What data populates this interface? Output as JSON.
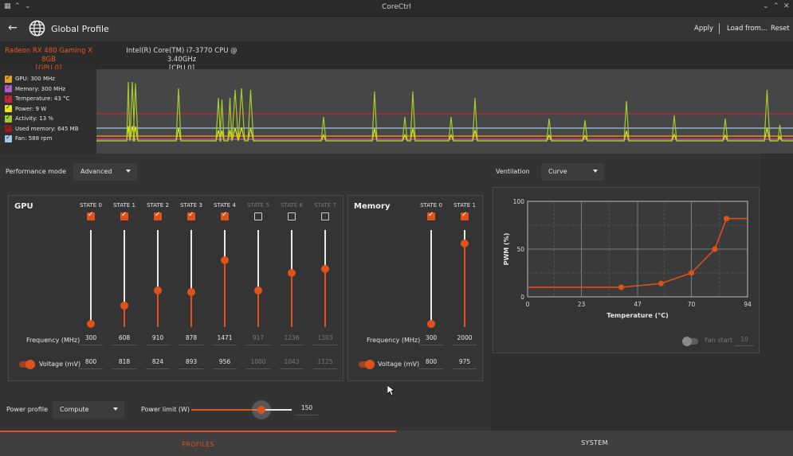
{
  "window": {
    "title": "CoreCtrl"
  },
  "header": {
    "title": "Global Profile",
    "apply": "Apply",
    "load": "Load from...",
    "reset": "Reset"
  },
  "devices": [
    {
      "line1": "Radeon RX 480 Gaming X 8GB",
      "line2": "[GPU 0]",
      "active": true
    },
    {
      "line1": "Intel(R) Core(TM) i7-3770 CPU @ 3.40GHz",
      "line2": "[CPU 0]",
      "active": false
    }
  ],
  "legend": [
    {
      "label": "GPU: 300 MHz",
      "color": "#e5a321"
    },
    {
      "label": "Memory: 300 MHz",
      "color": "#b15bc9"
    },
    {
      "label": "Temperature: 43 °C",
      "color": "#c7243a"
    },
    {
      "label": "Power: 9 W",
      "color": "#e6e619"
    },
    {
      "label": "Activity: 13 %",
      "color": "#a5cc2e"
    },
    {
      "label": "Used memory: 645 MB",
      "color": "#9a1b1b"
    },
    {
      "label": "Fan: 588 rpm",
      "color": "#9fcde6"
    }
  ],
  "perf": {
    "mode_label": "Performance mode",
    "mode_value": "Advanced",
    "gpu_title": "GPU",
    "mem_title": "Memory",
    "freq_label": "Frequency (MHz)",
    "volt_label": "Voltage (mV)",
    "gpu_states": [
      {
        "name": "STATE 0",
        "enabled": true,
        "freq": "300",
        "volt": "800",
        "level": 0.03
      },
      {
        "name": "STATE 1",
        "enabled": true,
        "freq": "608",
        "volt": "818",
        "level": 0.22
      },
      {
        "name": "STATE 2",
        "enabled": true,
        "freq": "910",
        "volt": "824",
        "level": 0.38
      },
      {
        "name": "STATE 3",
        "enabled": true,
        "freq": "878",
        "volt": "893",
        "level": 0.36
      },
      {
        "name": "STATE 4",
        "enabled": true,
        "freq": "1471",
        "volt": "956",
        "level": 0.69
      },
      {
        "name": "STATE 5",
        "enabled": false,
        "freq": "917",
        "volt": "1000",
        "level": 0.38
      },
      {
        "name": "STATE 6",
        "enabled": false,
        "freq": "1236",
        "volt": "1043",
        "level": 0.56
      },
      {
        "name": "STATE 7",
        "enabled": false,
        "freq": "1303",
        "volt": "1125",
        "level": 0.6
      }
    ],
    "mem_states": [
      {
        "name": "STATE 0",
        "enabled": true,
        "freq": "300",
        "volt": "800",
        "level": 0.03
      },
      {
        "name": "STATE 1",
        "enabled": true,
        "freq": "2000",
        "volt": "975",
        "level": 0.86
      }
    ],
    "power_profile_label": "Power profile",
    "power_profile_value": "Compute",
    "power_limit_label": "Power limit (W)",
    "power_limit_value": "150",
    "power_limit_level": 0.7
  },
  "vent": {
    "label": "Ventilation",
    "mode": "Curve",
    "fan_start_label": "Fan start",
    "fan_start_value": "10"
  },
  "chart_data": {
    "type": "line",
    "xlabel": "Temperature (°C)",
    "ylabel": "PWM (%)",
    "xlim": [
      0,
      94
    ],
    "ylim": [
      0,
      100
    ],
    "xticks": [
      "0",
      "23",
      "47",
      "70",
      "94"
    ],
    "yticks": [
      "0",
      "50",
      "100"
    ],
    "series": [
      {
        "x": [
          0,
          40,
          57,
          70,
          80,
          85,
          94
        ],
        "y": [
          10,
          10,
          14,
          25,
          50,
          82,
          82
        ]
      }
    ],
    "points": [
      {
        "x": 40,
        "y": 10
      },
      {
        "x": 57,
        "y": 14
      },
      {
        "x": 70,
        "y": 25
      },
      {
        "x": 80,
        "y": 50
      },
      {
        "x": 85,
        "y": 82
      }
    ],
    "grid": true
  },
  "bottom_tabs": [
    {
      "label": "PROFILES",
      "active": true
    },
    {
      "label": "SYSTEM",
      "active": false
    }
  ]
}
